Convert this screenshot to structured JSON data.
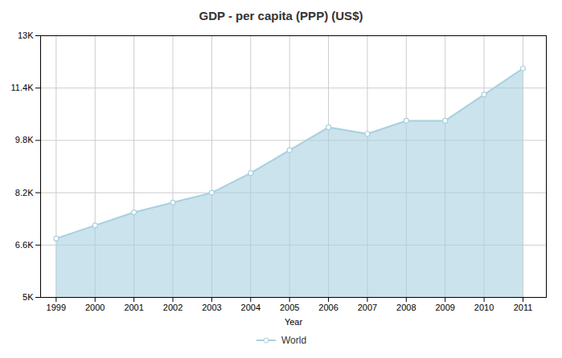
{
  "chart_data": {
    "type": "area",
    "title": "GDP - per capita (PPP) (US$)",
    "xlabel": "Year",
    "x": [
      1999,
      2000,
      2001,
      2002,
      2003,
      2004,
      2005,
      2006,
      2007,
      2008,
      2009,
      2010,
      2011
    ],
    "series": [
      {
        "name": "World",
        "color": "#a8d0e0",
        "marker": "circle",
        "values": [
          6800,
          7200,
          7600,
          7900,
          8200,
          8800,
          9500,
          10200,
          10000,
          10400,
          10400,
          11200,
          12000
        ]
      }
    ],
    "xlim": [
      1998.6,
      2011.6
    ],
    "xticks": [
      1999,
      2000,
      2001,
      2002,
      2003,
      2004,
      2005,
      2006,
      2007,
      2008,
      2009,
      2010,
      2011
    ],
    "ylim": [
      5000,
      13000
    ],
    "yticks": [
      {
        "value": 5000,
        "label": "5K"
      },
      {
        "value": 6600,
        "label": "6.6K"
      },
      {
        "value": 8200,
        "label": "8.2K"
      },
      {
        "value": 9800,
        "label": "9.8K"
      },
      {
        "value": 11400,
        "label": "11.4K"
      },
      {
        "value": 13000,
        "label": "13K"
      }
    ],
    "grid": true,
    "legend": "bottom"
  }
}
